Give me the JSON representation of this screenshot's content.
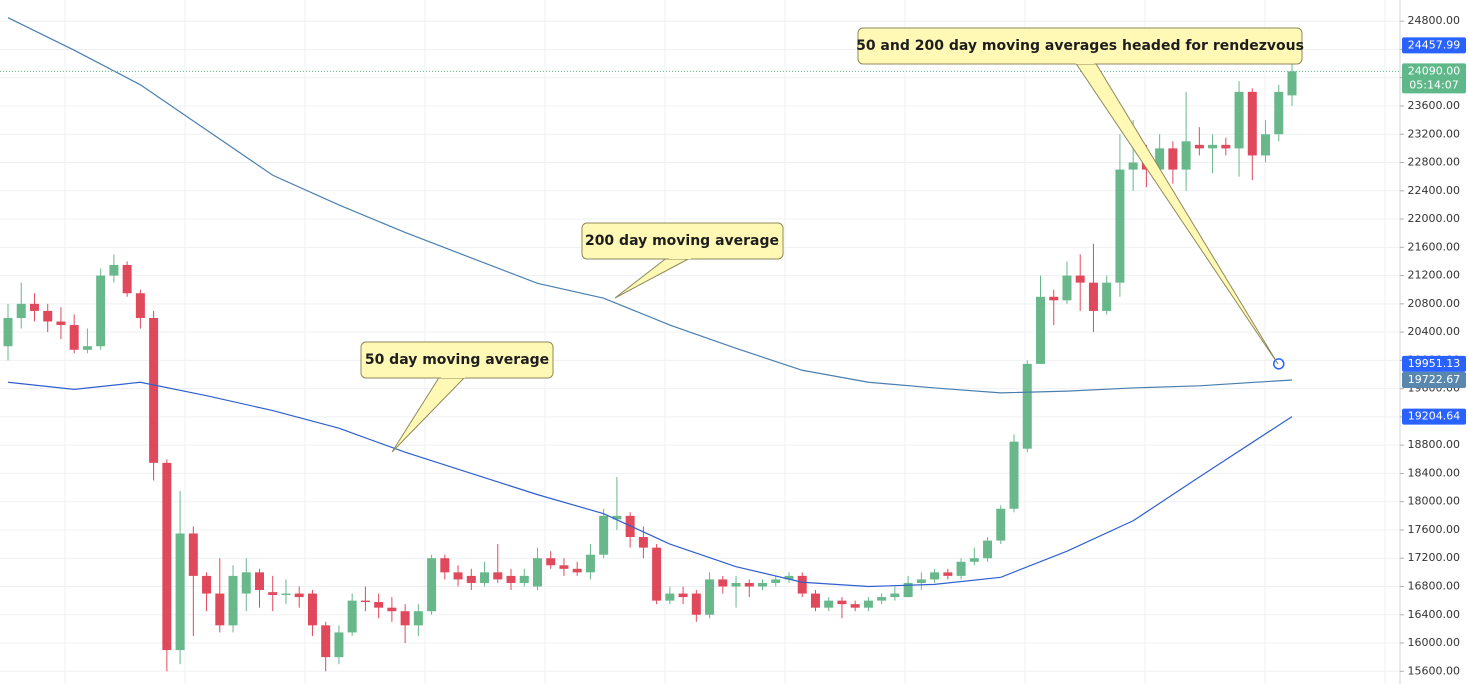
{
  "chart_data": {
    "type": "candlestick",
    "up_color": "#68b88c",
    "down_color": "#e0495c",
    "open": [
      20200,
      20600,
      20800,
      20700,
      20550,
      20500,
      20150,
      20200,
      21200,
      21350,
      20950,
      20600,
      18550,
      15900,
      17550,
      16950,
      16700,
      16250,
      16700,
      17000,
      16720,
      16680,
      16700,
      16700,
      16250,
      15800,
      16150,
      16600,
      16580,
      16500,
      16450,
      16250,
      16450,
      17200,
      17000,
      16950,
      16850,
      17000,
      16950,
      16850,
      16800,
      17200,
      17100,
      17050,
      17000,
      17250,
      17750,
      17800,
      17500,
      17350,
      16600,
      16700,
      16700,
      16400,
      16900,
      16800,
      16850,
      16800,
      16850,
      16900,
      16950,
      16700,
      16500,
      16600,
      16550,
      16500,
      16600,
      16650,
      16650,
      16850,
      16900,
      17000,
      16950,
      17150,
      17200,
      17450,
      17900,
      18750,
      19950,
      20900,
      20850,
      21200,
      21100,
      20700,
      21100,
      22700,
      22800,
      22700,
      23000,
      22700,
      23050,
      23000,
      23050,
      23000,
      23800,
      22900,
      23200,
      23750
    ],
    "high": [
      20800,
      21100,
      20950,
      20800,
      20750,
      20650,
      20450,
      21300,
      21500,
      21400,
      21000,
      20700,
      18600,
      18150,
      17650,
      17000,
      17200,
      17100,
      17200,
      17050,
      16950,
      16900,
      16800,
      16750,
      16300,
      16250,
      16700,
      16800,
      16700,
      16650,
      16550,
      16550,
      17250,
      17250,
      17100,
      17050,
      17150,
      17400,
      17050,
      17050,
      17350,
      17300,
      17200,
      17150,
      17400,
      17900,
      18350,
      17850,
      17650,
      17400,
      16800,
      16800,
      16750,
      17000,
      16950,
      16950,
      16900,
      16900,
      16950,
      17000,
      17000,
      16750,
      16650,
      16650,
      16600,
      16650,
      16700,
      16800,
      16950,
      17000,
      17050,
      17050,
      17200,
      17350,
      17500,
      17950,
      18950,
      20000,
      21200,
      21000,
      21400,
      21500,
      21650,
      21200,
      23200,
      23400,
      23050,
      23200,
      23100,
      23800,
      23300,
      23200,
      23150,
      23950,
      23850,
      23400,
      23900,
      24300
    ],
    "low": [
      20000,
      20450,
      20550,
      20400,
      20300,
      20100,
      20100,
      20150,
      21100,
      20900,
      20450,
      18300,
      15600,
      15700,
      16100,
      16450,
      16150,
      16150,
      16450,
      16500,
      16450,
      16550,
      16500,
      16100,
      15600,
      15700,
      16100,
      16450,
      16350,
      16300,
      16000,
      16100,
      16400,
      16900,
      16800,
      16750,
      16800,
      16850,
      16750,
      16800,
      16750,
      17050,
      16950,
      16950,
      16900,
      17200,
      17600,
      17350,
      17200,
      16550,
      16550,
      16550,
      16300,
      16350,
      16700,
      16500,
      16650,
      16750,
      16800,
      16850,
      16650,
      16450,
      16450,
      16350,
      16450,
      16450,
      16550,
      16600,
      16650,
      16750,
      16850,
      16900,
      16900,
      17100,
      17150,
      17400,
      17850,
      18700,
      19950,
      20500,
      20800,
      20700,
      20400,
      20650,
      20900,
      22400,
      22450,
      22450,
      22500,
      22400,
      22900,
      22650,
      22900,
      22600,
      22550,
      22800,
      23100,
      23600
    ],
    "close": [
      20600,
      20800,
      20700,
      20550,
      20500,
      20150,
      20200,
      21200,
      21350,
      20950,
      20600,
      18550,
      15900,
      17550,
      16950,
      16700,
      16250,
      16950,
      17000,
      16750,
      16680,
      16700,
      16650,
      16250,
      15800,
      16150,
      16600,
      16580,
      16500,
      16450,
      16250,
      16450,
      17200,
      17000,
      16900,
      16850,
      17000,
      16900,
      16850,
      16950,
      17200,
      17100,
      17050,
      17000,
      17250,
      17800,
      17800,
      17500,
      17350,
      16600,
      16700,
      16650,
      16400,
      16900,
      16800,
      16850,
      16800,
      16850,
      16900,
      16950,
      16700,
      16500,
      16600,
      16550,
      16500,
      16600,
      16650,
      16700,
      16850,
      16900,
      17000,
      16950,
      17150,
      17200,
      17450,
      17900,
      18850,
      19950,
      20900,
      20850,
      21200,
      21100,
      20700,
      21100,
      22700,
      22800,
      22700,
      23000,
      22700,
      23100,
      23000,
      23050,
      23000,
      23800,
      22900,
      23200,
      23800,
      24090
    ],
    "series": [
      {
        "color": "#4a7fb0",
        "x": [
          0,
          5,
          10,
          15,
          20,
          25,
          30,
          35,
          40,
          45,
          50,
          55,
          60,
          65,
          70,
          75,
          80,
          85,
          90,
          97
        ],
        "values": [
          24850,
          24390,
          23900,
          23260,
          22620,
          22200,
          21810,
          21450,
          21090,
          20880,
          20500,
          20170,
          19860,
          19690,
          19610,
          19540,
          19565,
          19610,
          19640,
          19722.67
        ]
      },
      {
        "color": "#2f5fd0",
        "x": [
          0,
          5,
          10,
          15,
          20,
          25,
          30,
          35,
          40,
          45,
          50,
          55,
          60,
          65,
          70,
          75,
          80,
          85,
          90,
          97
        ],
        "values": [
          19690,
          19590,
          19690,
          19500,
          19290,
          19040,
          18700,
          18400,
          18100,
          17830,
          17400,
          17080,
          16860,
          16800,
          16830,
          16930,
          17300,
          17730,
          18350,
          19204.64
        ]
      }
    ],
    "ylim": [
      15420,
      25100
    ],
    "yticks": [
      {
        "value": 15600,
        "label": "15600.00"
      },
      {
        "value": 16000,
        "label": "16000.00"
      },
      {
        "value": 16400,
        "label": "16400.00"
      },
      {
        "value": 16800,
        "label": "16800.00"
      },
      {
        "value": 17200,
        "label": "17200.00"
      },
      {
        "value": 17600,
        "label": "17600.00"
      },
      {
        "value": 18000,
        "label": "18000.00"
      },
      {
        "value": 18400,
        "label": "18400.00"
      },
      {
        "value": 18800,
        "label": "18800.00"
      },
      {
        "value": 19200,
        "label": "19200.00"
      },
      {
        "value": 19600,
        "label": "19600.00"
      },
      {
        "value": 20000,
        "label": "20000.00"
      },
      {
        "value": 20400,
        "label": "20400.00"
      },
      {
        "value": 20800,
        "label": "20800.00"
      },
      {
        "value": 21200,
        "label": "21200.00"
      },
      {
        "value": 21600,
        "label": "21600.00"
      },
      {
        "value": 22000,
        "label": "22000.00"
      },
      {
        "value": 22400,
        "label": "22400.00"
      },
      {
        "value": 22800,
        "label": "22800.00"
      },
      {
        "value": 23200,
        "label": "23200.00"
      },
      {
        "value": 23600,
        "label": "23600.00"
      },
      {
        "value": 24000,
        "label": "24000.00"
      },
      {
        "value": 24400,
        "label": "24400.00"
      },
      {
        "value": 24800,
        "label": "24800.00"
      }
    ],
    "grid": true,
    "price_tags": [
      {
        "value": 24457.99,
        "color": "#2962ff"
      },
      {
        "value": 24090,
        "label": "24090.00",
        "sub": "05:14:07",
        "color": "#5fb88a"
      },
      {
        "value": 19951.13,
        "color": "#2962ff"
      },
      {
        "value": 19722.67,
        "color": "#5a87ad"
      },
      {
        "value": 19204.64,
        "color": "#2962ff"
      }
    ],
    "marker": {
      "index": 96,
      "value": 19951.13,
      "color": "#2962ff"
    },
    "annotations": [
      {
        "text": "50 and 200 day moving averages headed for rendezvous"
      },
      {
        "text": "200 day moving average"
      },
      {
        "text": "50 day moving average"
      }
    ]
  }
}
